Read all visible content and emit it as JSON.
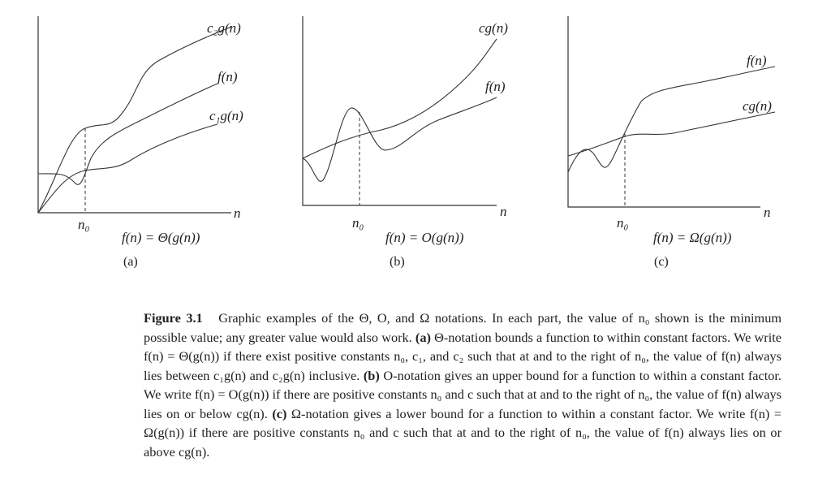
{
  "panels": [
    {
      "upper": "c₂g(n)",
      "middle": "f(n)",
      "lower": "c₁g(n)",
      "x_label": "n",
      "n0": "n₀",
      "formula": "f(n) = Θ(g(n))",
      "tag": "(a)"
    },
    {
      "upper": "cg(n)",
      "lower": "f(n)",
      "x_label": "n",
      "n0": "n₀",
      "formula": "f(n) = O(g(n))",
      "tag": "(b)"
    },
    {
      "upper": "f(n)",
      "lower": "cg(n)",
      "x_label": "n",
      "n0": "n₀",
      "formula": "f(n) = Ω(g(n))",
      "tag": "(c)"
    }
  ],
  "caption": {
    "label": "Figure 3.1",
    "intro": "Graphic examples of the Θ, O, and Ω notations. In each part, the value of n₀ shown is the minimum possible value; any greater value would also work.",
    "a_tag": "(a)",
    "a_text": "Θ-notation bounds a function to within constant factors. We write f(n) = Θ(g(n)) if there exist positive constants n₀, c₁, and c₂ such that at and to the right of n₀, the value of f(n) always lies between c₁g(n) and c₂g(n) inclusive.",
    "b_tag": "(b)",
    "b_text": "O-notation gives an upper bound for a function to within a constant factor. We write f(n) = O(g(n)) if there are positive constants n₀ and c such that at and to the right of n₀, the value of f(n) always lies on or below cg(n).",
    "c_tag": "(c)",
    "c_text": "Ω-notation gives a lower bound for a function to within a constant factor. We write f(n) = Ω(g(n)) if there are positive constants n₀ and c such that at and to the right of n₀, the value of f(n) always lies on or above cg(n)."
  }
}
